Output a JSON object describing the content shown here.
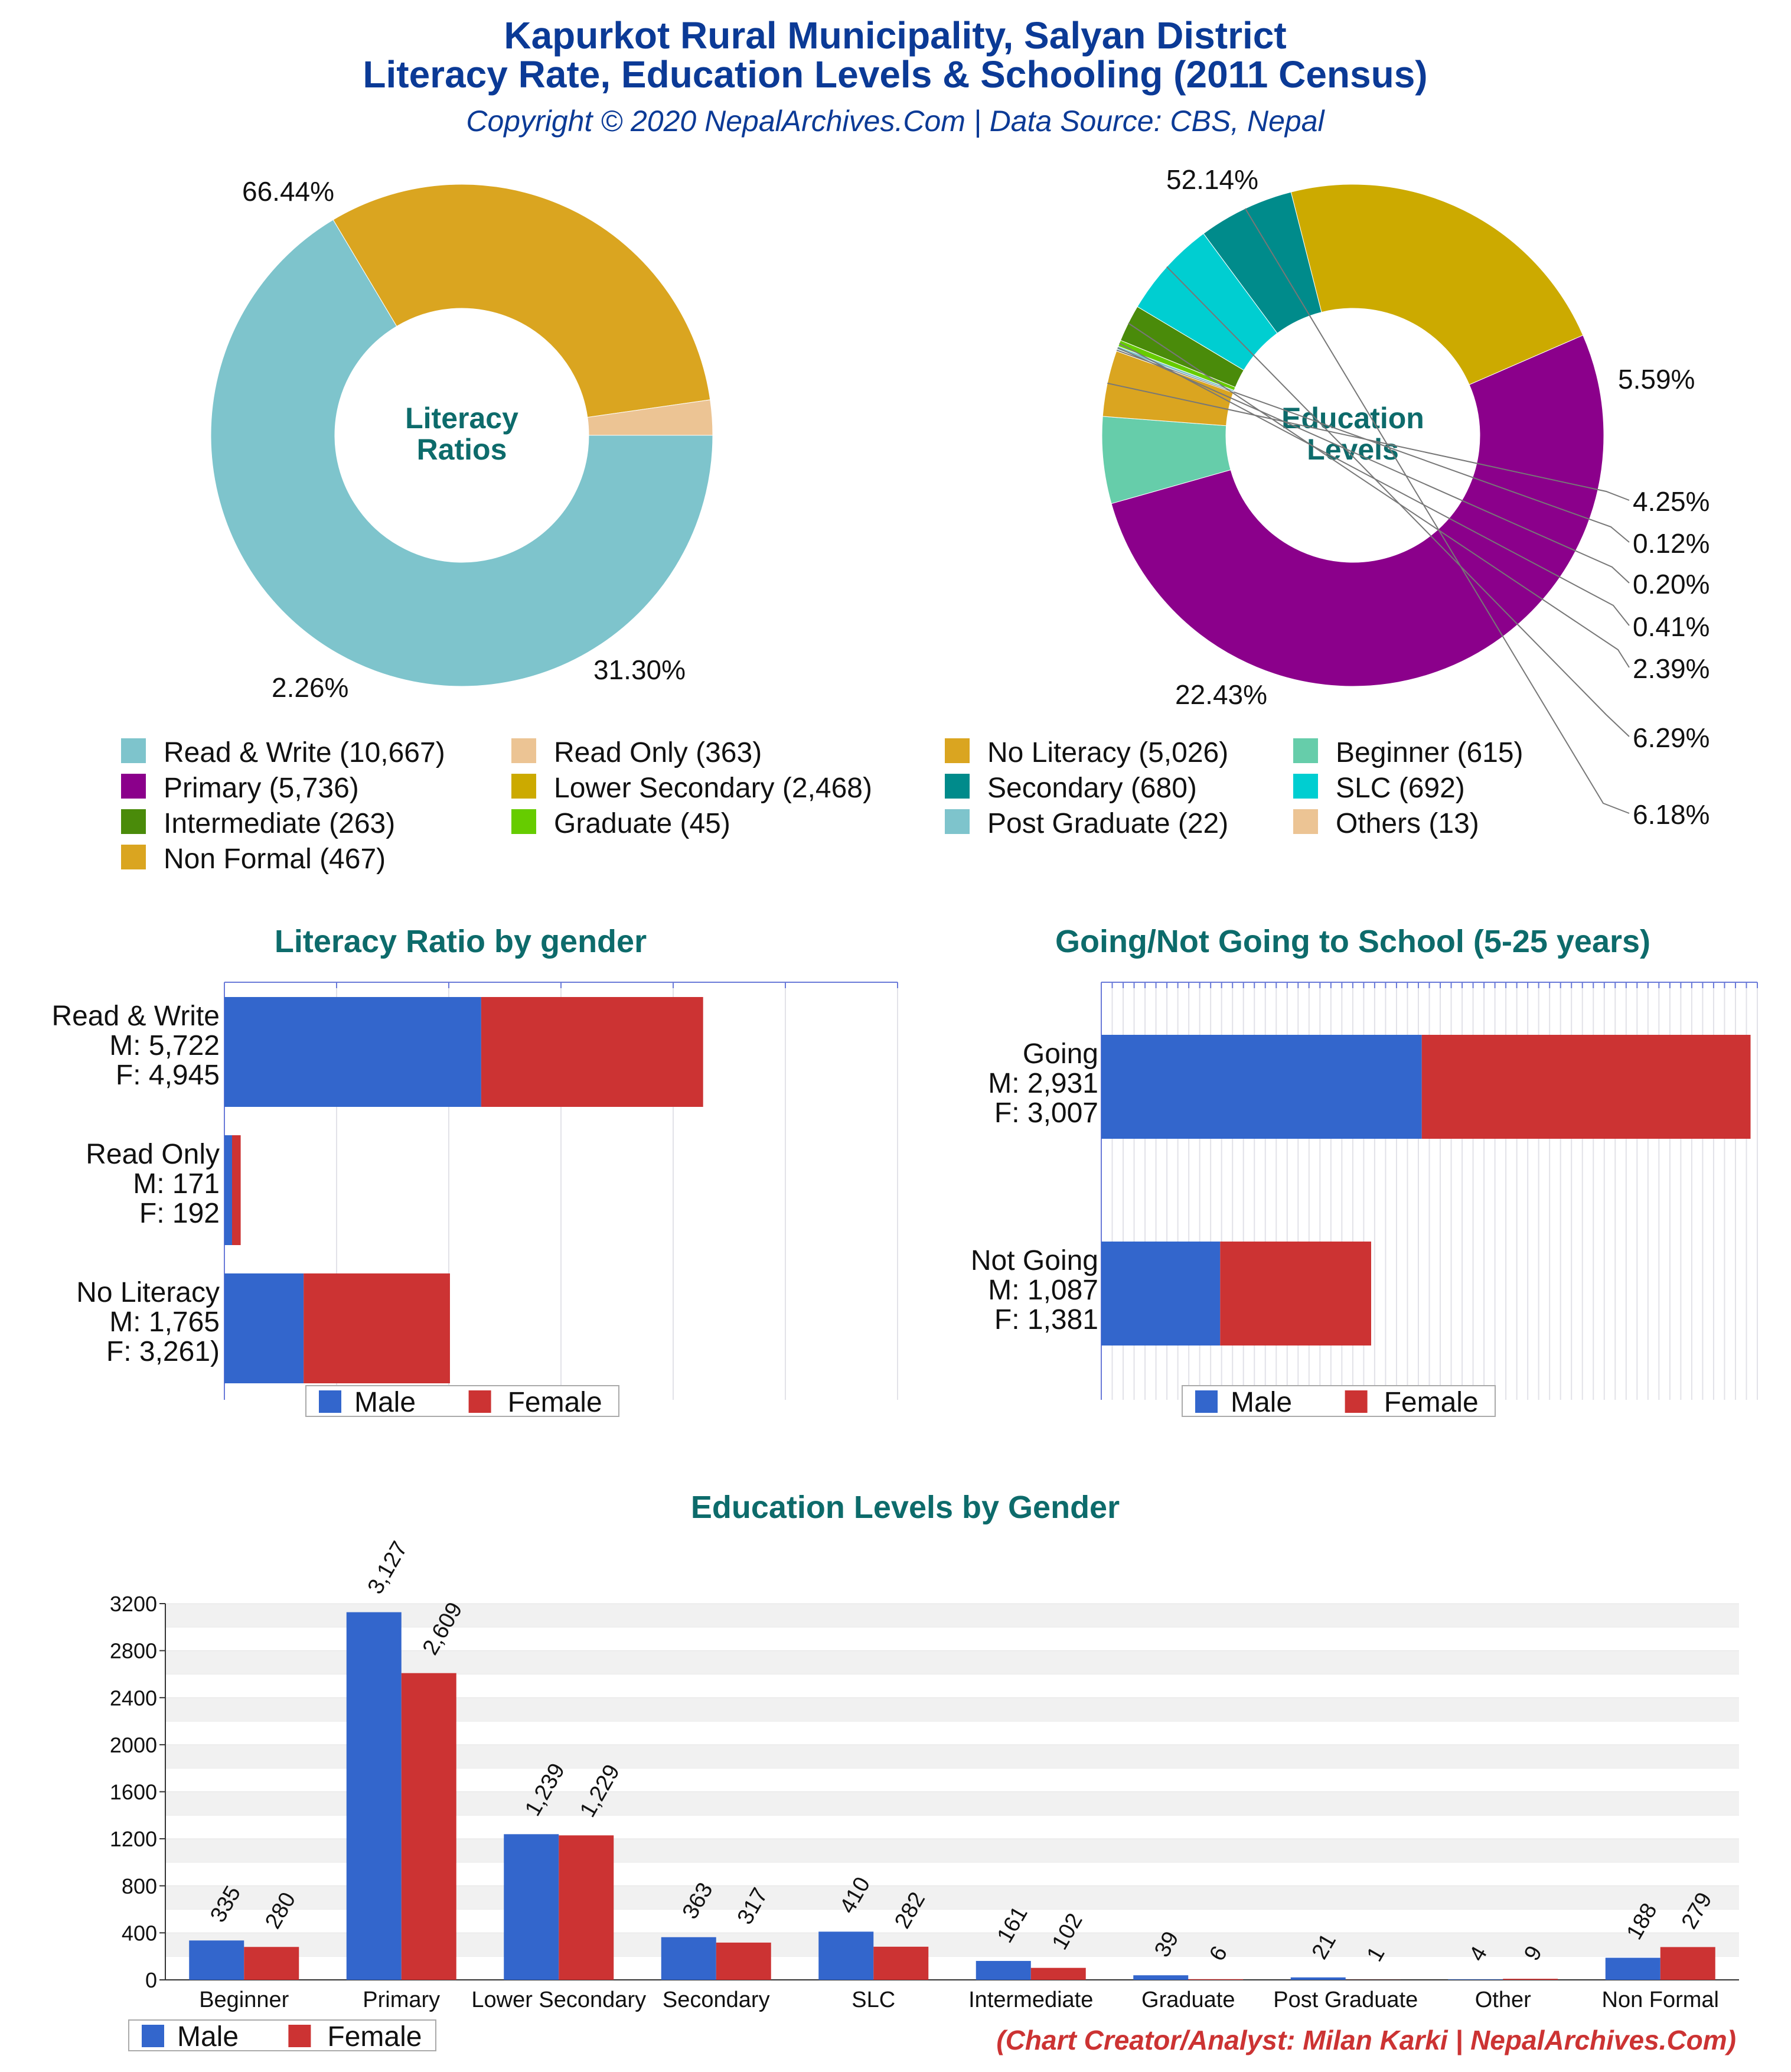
{
  "header": {
    "title_line1": "Kapurkot Rural Municipality, Salyan District",
    "title_line2": "Literacy Rate, Education Levels & Schooling (2011 Census)",
    "copyright": "Copyright © 2020 NepalArchives.Com | Data Source: CBS, Nepal"
  },
  "footer": {
    "credit": "(Chart Creator/Analyst: Milan Karki | NepalArchives.Com)"
  },
  "colors": {
    "title": "#0b3a96",
    "section_title": "#0d6b6b",
    "male": "#3366cc",
    "female": "#cc3333",
    "credit": "#cc3333"
  },
  "legend_main": [
    {
      "label": "Read & Write (10,667)",
      "color": "#7ec4cc"
    },
    {
      "label": "Read Only (363)",
      "color": "#ecc494"
    },
    {
      "label": "No Literacy (5,026)",
      "color": "#daa520"
    },
    {
      "label": "Beginner (615)",
      "color": "#66cdaa"
    },
    {
      "label": "Primary (5,736)",
      "color": "#8b008b"
    },
    {
      "label": "Lower Secondary (2,468)",
      "color": "#ccaa00"
    },
    {
      "label": "Secondary (680)",
      "color": "#008b8b"
    },
    {
      "label": "SLC (692)",
      "color": "#00ced1"
    },
    {
      "label": "Intermediate (263)",
      "color": "#4a8b0a"
    },
    {
      "label": "Graduate (45)",
      "color": "#66cc00"
    },
    {
      "label": "Post Graduate (22)",
      "color": "#7ec4cc"
    },
    {
      "label": "Others (13)",
      "color": "#ecc494"
    },
    {
      "label": "Non Formal (467)",
      "color": "#daa520"
    }
  ],
  "chart_data": [
    {
      "type": "pie",
      "title": "Literacy Ratios",
      "slices": [
        {
          "name": "Read & Write",
          "value": 10667,
          "label": "66.44%",
          "color": "#7ec4cc"
        },
        {
          "name": "No Literacy",
          "value": 5026,
          "label": "31.30%",
          "color": "#daa520"
        },
        {
          "name": "Read Only",
          "value": 363,
          "label": "2.26%",
          "color": "#ecc494"
        }
      ]
    },
    {
      "type": "pie",
      "title": "Education Levels",
      "slices": [
        {
          "name": "Primary",
          "value": 5736,
          "label": "52.14%",
          "color": "#8b008b"
        },
        {
          "name": "Beginner",
          "value": 615,
          "label": "5.59%",
          "color": "#66cdaa"
        },
        {
          "name": "Non Formal",
          "value": 467,
          "label": "4.25%",
          "color": "#daa520"
        },
        {
          "name": "Others",
          "value": 13,
          "label": "0.12%",
          "color": "#ecc494"
        },
        {
          "name": "Post Graduate",
          "value": 22,
          "label": "0.20%",
          "color": "#7ec4cc"
        },
        {
          "name": "Graduate",
          "value": 45,
          "label": "0.41%",
          "color": "#66cc00"
        },
        {
          "name": "Intermediate",
          "value": 263,
          "label": "2.39%",
          "color": "#4a8b0a"
        },
        {
          "name": "SLC",
          "value": 692,
          "label": "6.29%",
          "color": "#00ced1"
        },
        {
          "name": "Secondary",
          "value": 680,
          "label": "6.18%",
          "color": "#008b8b"
        },
        {
          "name": "Lower Secondary",
          "value": 2468,
          "label": "22.43%",
          "color": "#ccaa00"
        }
      ]
    },
    {
      "type": "bar",
      "orientation": "horizontal",
      "stacked": true,
      "title": "Literacy Ratio by gender",
      "categories": [
        "Read & Write",
        "Read Only",
        "No Literacy"
      ],
      "category_labels": [
        [
          "Read & Write",
          "M: 5,722",
          "F: 4,945"
        ],
        [
          "Read Only",
          "M: 171",
          "F: 192"
        ],
        [
          "No Literacy",
          "M: 1,765",
          "F: 3,261)"
        ]
      ],
      "series": [
        {
          "name": "Male",
          "values": [
            5722,
            171,
            1765
          ]
        },
        {
          "name": "Female",
          "values": [
            4945,
            192,
            3261
          ]
        }
      ],
      "xlim": [
        0,
        15000
      ],
      "legend": [
        "Male",
        "Female"
      ]
    },
    {
      "type": "bar",
      "orientation": "horizontal",
      "stacked": true,
      "title": "Going/Not Going to School (5-25 years)",
      "categories": [
        "Going",
        "Not Going"
      ],
      "category_labels": [
        [
          "Going",
          "M: 2,931",
          "F: 3,007"
        ],
        [
          "Not Going",
          "M: 1,087",
          "F: 1,381"
        ]
      ],
      "series": [
        {
          "name": "Male",
          "values": [
            2931,
            1087
          ]
        },
        {
          "name": "Female",
          "values": [
            3007,
            1381
          ]
        }
      ],
      "xlim": [
        0,
        6000
      ],
      "legend": [
        "Male",
        "Female"
      ]
    },
    {
      "type": "bar",
      "title": "Education Levels by Gender",
      "categories": [
        "Beginner",
        "Primary",
        "Lower Secondary",
        "Secondary",
        "SLC",
        "Intermediate",
        "Graduate",
        "Post Graduate",
        "Other",
        "Non Formal"
      ],
      "series": [
        {
          "name": "Male",
          "values": [
            335,
            3127,
            1239,
            363,
            410,
            161,
            39,
            21,
            4,
            188
          ],
          "labels": [
            "335",
            "3,127",
            "1,239",
            "363",
            "410",
            "161",
            "39",
            "21",
            "4",
            "188"
          ]
        },
        {
          "name": "Female",
          "values": [
            280,
            2609,
            1229,
            317,
            282,
            102,
            6,
            1,
            9,
            279
          ],
          "labels": [
            "280",
            "2,609",
            "1,229",
            "317",
            "282",
            "102",
            "6",
            "1",
            "9",
            "279"
          ]
        }
      ],
      "yticks": [
        "0",
        "400",
        "800",
        "1200",
        "1600",
        "2000",
        "2400",
        "2800",
        "3200"
      ],
      "ylim": [
        0,
        3200
      ],
      "legend": [
        "Male",
        "Female"
      ]
    }
  ]
}
